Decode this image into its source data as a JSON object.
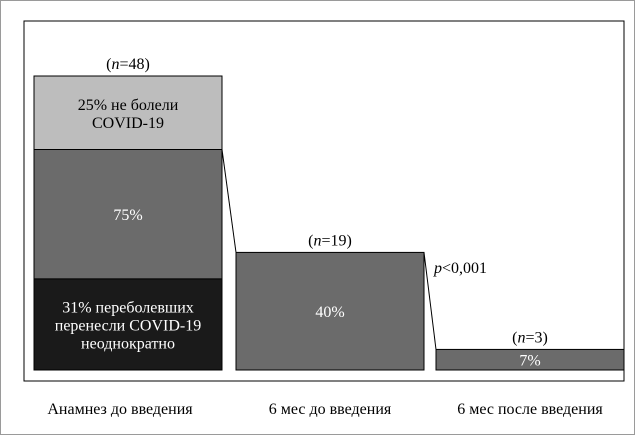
{
  "chart_data": {
    "type": "bar",
    "categories": [
      "Анамнез до введения",
      "6 мес до введения",
      "6 мес после введения"
    ],
    "values": [
      75,
      40,
      7
    ],
    "ylim": [
      0,
      100
    ],
    "value_labels": [
      "75%",
      "40%",
      "7%"
    ],
    "n_labels": [
      "(n=48)",
      "(n=19)",
      "(n=3)"
    ],
    "n_values": [
      48,
      19,
      3
    ],
    "first_bar_segments": [
      {
        "label_lines": [
          "31% переболевших",
          "перенесли COVID-19",
          "неоднократно"
        ],
        "value": 31,
        "color": "#1a1a1a",
        "text_color": "#ffffff"
      },
      {
        "label_lines": [
          "75%"
        ],
        "value": 44,
        "color": "#6b6b6b",
        "text_color": "#ffffff"
      },
      {
        "label_lines": [
          "25% не болели",
          "COVID-19"
        ],
        "value": 25,
        "color": "#bdbdbd",
        "text_color": "#000000"
      }
    ],
    "bar_color": "#6b6b6b",
    "annotation": "p<0,001",
    "grid": false,
    "legend": "none"
  }
}
